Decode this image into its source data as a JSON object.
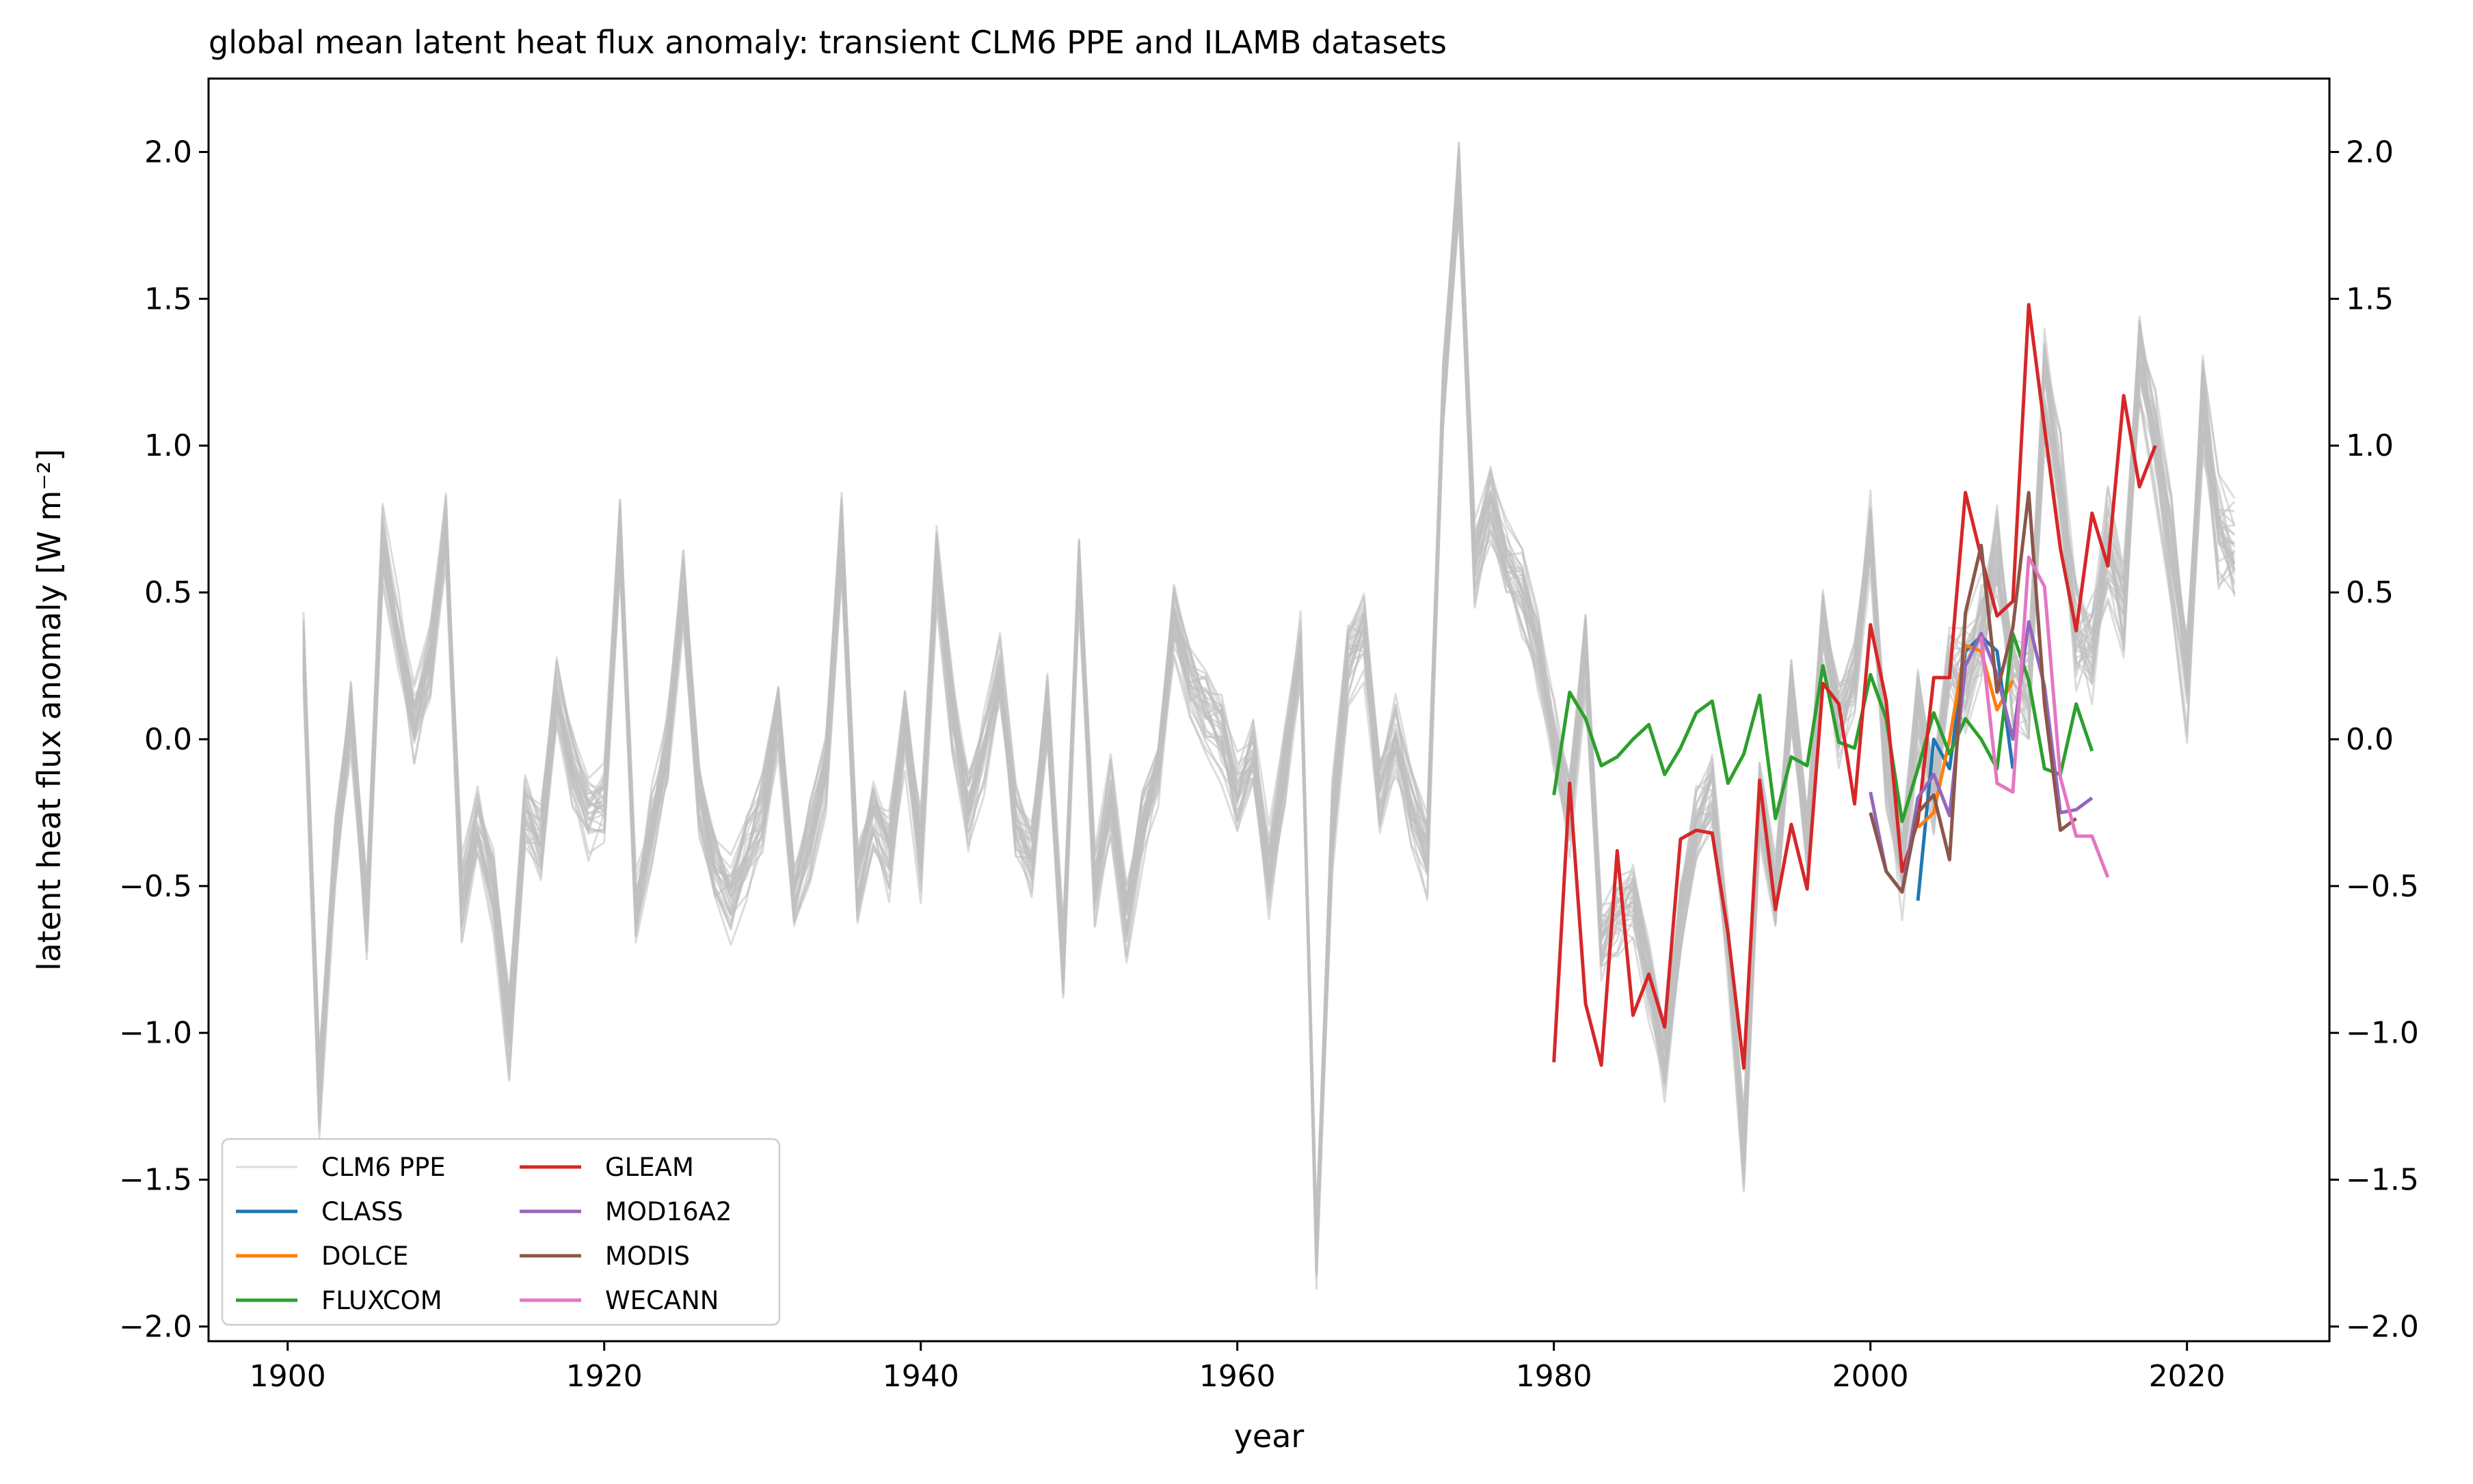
{
  "chart_data": {
    "type": "line",
    "title": "global mean latent heat flux anomaly: transient CLM6 PPE and ILAMB datasets",
    "xlabel": "year",
    "ylabel": "latent heat flux anomaly [W m⁻²]",
    "xlim": [
      1895,
      2029
    ],
    "ylim": [
      -2.05,
      2.25
    ],
    "x_ticks": [
      1900,
      1920,
      1940,
      1960,
      1980,
      2000,
      2020
    ],
    "y_ticks": [
      -2.0,
      -1.5,
      -1.0,
      -0.5,
      0.0,
      0.5,
      1.0,
      1.5,
      2.0
    ],
    "y_tick_labels": [
      "−2.0",
      "−1.5",
      "−1.0",
      "−0.5",
      "0.0",
      "0.5",
      "1.0",
      "1.5",
      "2.0"
    ],
    "right_axis_mirrors_left": true,
    "grid": false,
    "legend_position": "lower-left",
    "legend_columns": 2,
    "ensemble": {
      "name": "CLM6 PPE",
      "color": "#bfbfbf",
      "member_count": 30,
      "years": [
        1901,
        2023
      ],
      "approx_mean": [
        0.3,
        -1.2,
        -0.4,
        0.1,
        -0.6,
        0.65,
        0.35,
        0.05,
        0.25,
        0.7,
        -0.55,
        -0.3,
        -0.5,
        -1.0,
        -0.25,
        -0.35,
        0.15,
        -0.1,
        -0.25,
        -0.2,
        0.7,
        -0.6,
        -0.3,
        -0.05,
        0.5,
        -0.2,
        -0.45,
        -0.55,
        -0.4,
        -0.25,
        0.1,
        -0.55,
        -0.35,
        -0.1,
        0.7,
        -0.5,
        -0.25,
        -0.4,
        0.05,
        -0.4,
        0.6,
        0.1,
        -0.25,
        -0.05,
        0.2,
        -0.3,
        -0.4,
        0.1,
        -0.75,
        0.6,
        -0.5,
        -0.2,
        -0.65,
        -0.3,
        -0.1,
        0.4,
        0.2,
        0.1,
        0.0,
        -0.2,
        -0.05,
        -0.45,
        -0.1,
        0.3,
        -1.75,
        -0.3,
        0.25,
        0.35,
        -0.2,
        0.0,
        -0.25,
        -0.4,
        1.15,
        1.9,
        0.6,
        0.8,
        0.6,
        0.5,
        0.3,
        0.0,
        -0.25,
        0.3,
        -0.7,
        -0.6,
        -0.55,
        -0.8,
        -1.1,
        -0.6,
        -0.3,
        -0.2,
        -0.7,
        -1.4,
        -0.2,
        -0.55,
        0.15,
        -0.35,
        0.4,
        0.05,
        0.2,
        0.7,
        -0.1,
        -0.45,
        0.1,
        -0.2,
        0.25,
        0.2,
        0.35,
        0.6,
        0.2,
        0.15,
        1.2,
        0.85,
        0.35,
        0.3,
        0.65,
        0.45,
        1.3,
        1.0,
        0.65,
        0.2,
        1.1,
        0.7,
        0.65
      ]
    },
    "series": [
      {
        "name": "CLASS",
        "color": "#1f77b4",
        "x": [
          2003,
          2004,
          2005,
          2006,
          2007,
          2008,
          2009
        ],
        "y": [
          -0.55,
          0.0,
          -0.1,
          0.3,
          0.35,
          0.3,
          -0.1
        ]
      },
      {
        "name": "DOLCE",
        "color": "#ff7f0e",
        "x": [
          2003,
          2004,
          2005,
          2006,
          2007,
          2008,
          2009
        ],
        "y": [
          -0.3,
          -0.25,
          0.0,
          0.32,
          0.3,
          0.1,
          0.2
        ]
      },
      {
        "name": "FLUXCOM",
        "color": "#2ca02c",
        "x": [
          1980,
          1981,
          1982,
          1983,
          1984,
          1985,
          1986,
          1987,
          1988,
          1989,
          1990,
          1991,
          1992,
          1993,
          1994,
          1995,
          1996,
          1997,
          1998,
          1999,
          2000,
          2001,
          2002,
          2003,
          2004,
          2005,
          2006,
          2007,
          2008,
          2009,
          2010,
          2011,
          2012,
          2013,
          2014
        ],
        "y": [
          -0.19,
          0.16,
          0.07,
          -0.09,
          -0.06,
          0.0,
          0.05,
          -0.12,
          -0.03,
          0.09,
          0.13,
          -0.15,
          -0.05,
          0.15,
          -0.27,
          -0.06,
          -0.09,
          0.25,
          -0.01,
          -0.03,
          0.22,
          0.07,
          -0.28,
          -0.1,
          0.09,
          -0.05,
          0.07,
          0.0,
          -0.1,
          0.36,
          0.2,
          -0.1,
          -0.12,
          0.12,
          -0.04
        ]
      },
      {
        "name": "GLEAM",
        "color": "#d62728",
        "x": [
          1980,
          1981,
          1982,
          1983,
          1984,
          1985,
          1986,
          1987,
          1988,
          1989,
          1990,
          1991,
          1992,
          1993,
          1994,
          1995,
          1996,
          1997,
          1998,
          1999,
          2000,
          2001,
          2002,
          2003,
          2004,
          2005,
          2006,
          2007,
          2008,
          2009,
          2010,
          2011,
          2012,
          2013,
          2014,
          2015,
          2016,
          2017,
          2018
        ],
        "y": [
          -1.1,
          -0.15,
          -0.9,
          -1.11,
          -0.38,
          -0.94,
          -0.8,
          -0.98,
          -0.34,
          -0.31,
          -0.32,
          -0.66,
          -1.12,
          -0.14,
          -0.58,
          -0.29,
          -0.51,
          0.19,
          0.12,
          -0.22,
          0.39,
          0.13,
          -0.45,
          -0.28,
          0.21,
          0.21,
          0.84,
          0.62,
          0.42,
          0.47,
          1.48,
          1.06,
          0.65,
          0.37,
          0.77,
          0.59,
          1.17,
          0.86,
          1.0
        ]
      },
      {
        "name": "MOD16A2",
        "color": "#9467bd",
        "x": [
          2000,
          2001,
          2002,
          2003,
          2004,
          2005,
          2006,
          2007,
          2008,
          2009,
          2010,
          2011,
          2012,
          2013,
          2014
        ],
        "y": [
          -0.18,
          -0.45,
          -0.52,
          -0.2,
          -0.12,
          -0.26,
          0.25,
          0.36,
          0.22,
          0.0,
          0.4,
          0.18,
          -0.25,
          -0.24,
          -0.2
        ]
      },
      {
        "name": "MODIS",
        "color": "#8c564b",
        "x": [
          2000,
          2001,
          2002,
          2003,
          2004,
          2005,
          2006,
          2007,
          2008,
          2009,
          2010,
          2011,
          2012,
          2013
        ],
        "y": [
          -0.25,
          -0.45,
          -0.52,
          -0.25,
          -0.19,
          -0.41,
          0.43,
          0.66,
          0.16,
          0.38,
          0.84,
          0.12,
          -0.31,
          -0.27
        ]
      },
      {
        "name": "WECANN",
        "color": "#e377c2",
        "x": [
          2007,
          2008,
          2009,
          2010,
          2011,
          2012,
          2013,
          2014,
          2015
        ],
        "y": [
          0.35,
          -0.15,
          -0.18,
          0.62,
          0.52,
          -0.13,
          -0.33,
          -0.33,
          -0.47
        ]
      }
    ]
  }
}
